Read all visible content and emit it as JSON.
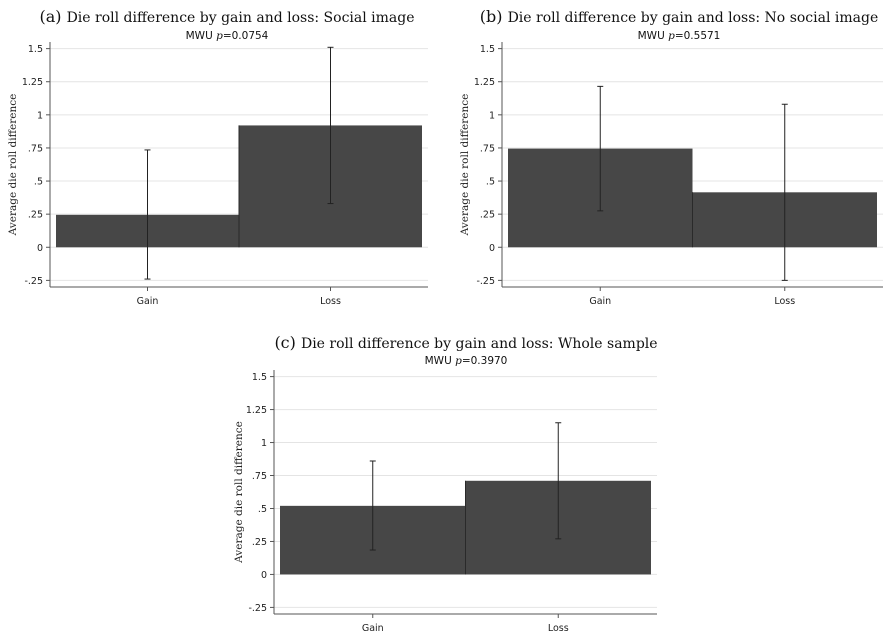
{
  "chart_data": [
    {
      "type": "bar",
      "panel_label": "(a)",
      "title": "Die roll difference by gain and loss: Social image",
      "subtitle_prefix": "MWU ",
      "subtitle_stat": "p",
      "subtitle_value": "=0.0754",
      "ylabel": "Average die roll difference",
      "categories": [
        "Gain",
        "Loss"
      ],
      "values": [
        0.245,
        0.92
      ],
      "error_low": [
        -0.24,
        0.33
      ],
      "error_high": [
        0.735,
        1.51
      ],
      "ylim": [
        -0.3,
        1.55
      ],
      "yticks": [
        -0.25,
        0,
        0.25,
        0.5,
        0.75,
        1,
        1.25,
        1.5
      ],
      "ytick_labels": [
        "-.25",
        "0",
        ".25",
        ".5",
        ".75",
        "1",
        "1.25",
        "1.5"
      ],
      "grid": true
    },
    {
      "type": "bar",
      "panel_label": "(b)",
      "title": "Die roll difference by gain and loss: No social image",
      "subtitle_prefix": "MWU ",
      "subtitle_stat": "p",
      "subtitle_value": "=0.5571",
      "ylabel": "Average die roll difference",
      "categories": [
        "Gain",
        "Loss"
      ],
      "values": [
        0.745,
        0.415
      ],
      "error_low": [
        0.275,
        -0.25
      ],
      "error_high": [
        1.215,
        1.08
      ],
      "ylim": [
        -0.3,
        1.55
      ],
      "yticks": [
        -0.25,
        0,
        0.25,
        0.5,
        0.75,
        1,
        1.25,
        1.5
      ],
      "ytick_labels": [
        "-.25",
        "0",
        ".25",
        ".5",
        ".75",
        "1",
        "1.25",
        "1.5"
      ],
      "grid": true
    },
    {
      "type": "bar",
      "panel_label": "(c)",
      "title": "Die roll difference by gain and loss: Whole sample",
      "subtitle_prefix": "MWU ",
      "subtitle_stat": "p",
      "subtitle_value": "=0.3970",
      "ylabel": "Average die roll difference",
      "categories": [
        "Gain",
        "Loss"
      ],
      "values": [
        0.52,
        0.71
      ],
      "error_low": [
        0.185,
        0.27
      ],
      "error_high": [
        0.86,
        1.15
      ],
      "ylim": [
        -0.3,
        1.55
      ],
      "yticks": [
        -0.25,
        0,
        0.25,
        0.5,
        0.75,
        1,
        1.25,
        1.5
      ],
      "ytick_labels": [
        "-.25",
        "0",
        ".25",
        ".5",
        ".75",
        "1",
        "1.25",
        "1.5"
      ],
      "grid": true
    }
  ]
}
